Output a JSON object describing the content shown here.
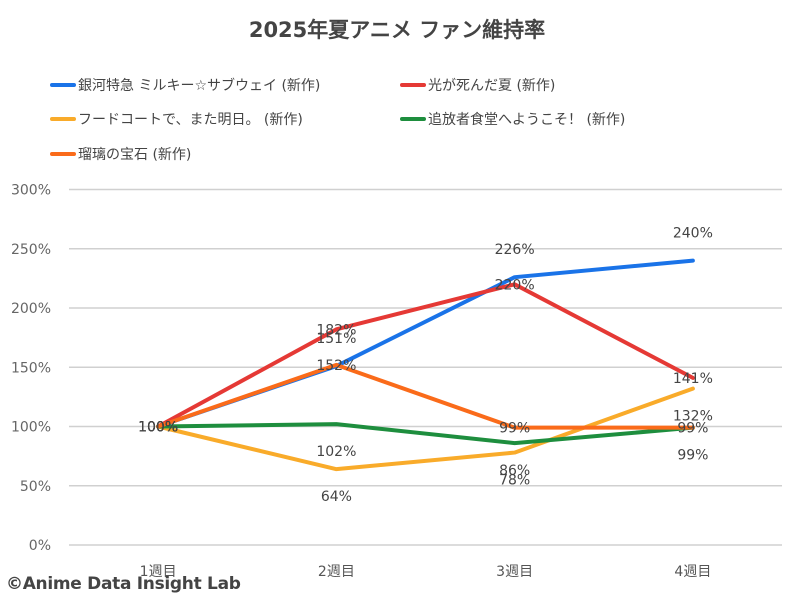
{
  "chart_data": {
    "type": "line",
    "title": "2025年夏アニメ ファン維持率",
    "xlabel": "",
    "ylabel": "",
    "categories": [
      "1週目",
      "2週目",
      "3週目",
      "4週目"
    ],
    "ylim": [
      0,
      300
    ],
    "yticks": [
      0,
      50,
      100,
      150,
      200,
      250,
      300
    ],
    "ytick_labels": [
      "0%",
      "50%",
      "100%",
      "150%",
      "200%",
      "250%",
      "300%"
    ],
    "grid": true,
    "legend_position": "top",
    "series": [
      {
        "name": "銀河特急 ミルキー☆サブウェイ (新作)",
        "color": "#1a73e8",
        "values": [
          100,
          151,
          226,
          240
        ],
        "labels": [
          "100%",
          "151%",
          "226%",
          "240%"
        ],
        "label_pos": "above"
      },
      {
        "name": "光が死んだ夏 (新作)",
        "color": "#e53935",
        "values": [
          100,
          182,
          220,
          141
        ],
        "labels": [
          "100%",
          "182%",
          "220%",
          "141%"
        ],
        "label_pos": "center"
      },
      {
        "name": "フードコートで、また明日。 (新作)",
        "color": "#f9ab2a",
        "values": [
          100,
          64,
          78,
          132
        ],
        "labels": [
          "100%",
          "64%",
          "78%",
          "132%"
        ],
        "label_pos": "below"
      },
      {
        "name": "追放者食堂へようこそ！ (新作)",
        "color": "#1e8e3e",
        "values": [
          100,
          102,
          86,
          99
        ],
        "labels": [
          "100%",
          "102%",
          "86%",
          "99%"
        ],
        "label_pos": "below"
      },
      {
        "name": "瑠璃の宝石 (新作)",
        "color": "#fa6b1a",
        "values": [
          100,
          152,
          99,
          99
        ],
        "labels": [
          "100%",
          "152%",
          "99%",
          "99%"
        ],
        "label_pos": "center"
      }
    ]
  },
  "footer": {
    "copyright": "©Anime Data Insight Lab"
  }
}
